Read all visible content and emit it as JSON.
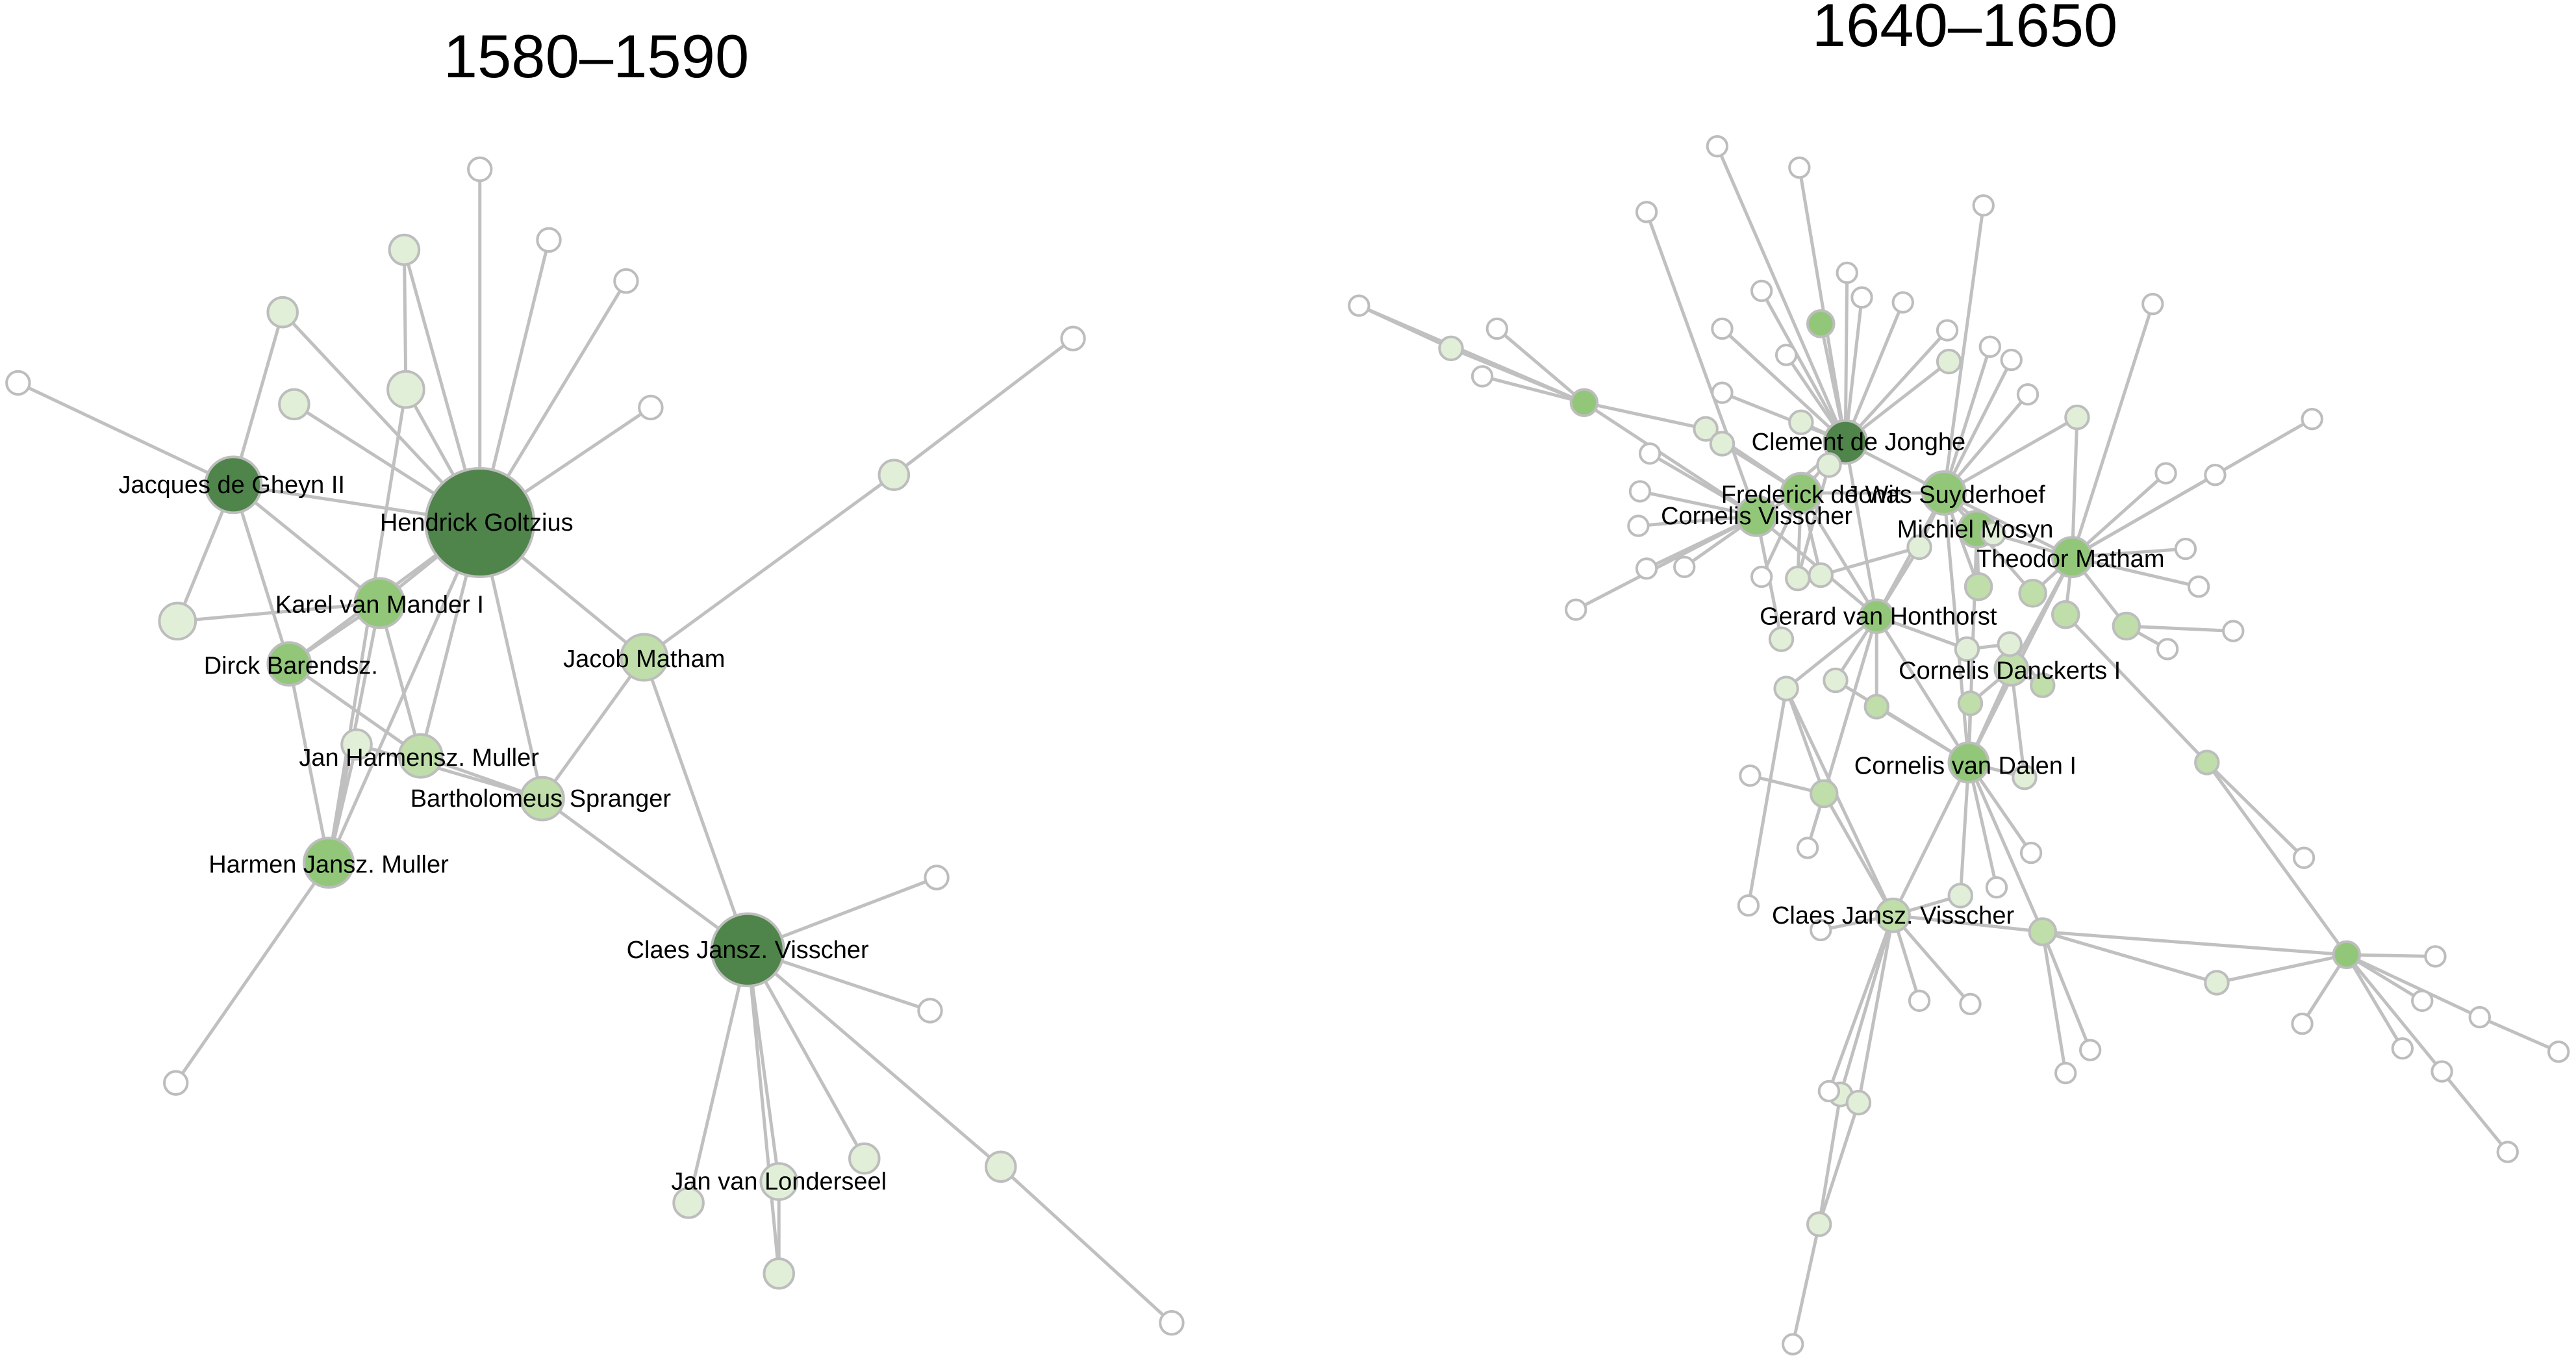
{
  "panels": [
    {
      "title": "1580–1590",
      "labels": {
        "ghe": "Jacques de Gheyn II",
        "gol": "Hendrick Goltzius",
        "man": "Karel van Mander I",
        "bar": "Dirck Barendsz.",
        "mat": "Jacob Matham",
        "jhm": "Jan Harmensz. Muller",
        "spr": "Bartholomeus Spranger",
        "hjm": "Harmen Jansz. Muller",
        "cjv": "Claes Jansz. Visscher",
        "lon": "Jan van Londerseel"
      }
    },
    {
      "title": "1640–1650",
      "labels": {
        "cdj": "Clement de Jonghe",
        "fdw": "Frederick de Wit",
        "jsu": "Jonas Suyderhoef",
        "cvi": "Cornelis Visscher",
        "mmo": "Michiel Mosyn",
        "tma": "Theodor Matham",
        "gvh": "Gerard van Honthorst",
        "cda": "Cornelis Danckerts I",
        "cvd": "Cornelis van Dalen I",
        "cjv2": "Claes Jansz. Visscher"
      }
    }
  ],
  "colors": {
    "edge": "#c0c0c0",
    "node_stroke": "#bdbdbd",
    "degree_levels": [
      "#ffffff",
      "#e2efd8",
      "#bfdeaa",
      "#92c77a",
      "#4f844a"
    ]
  }
}
